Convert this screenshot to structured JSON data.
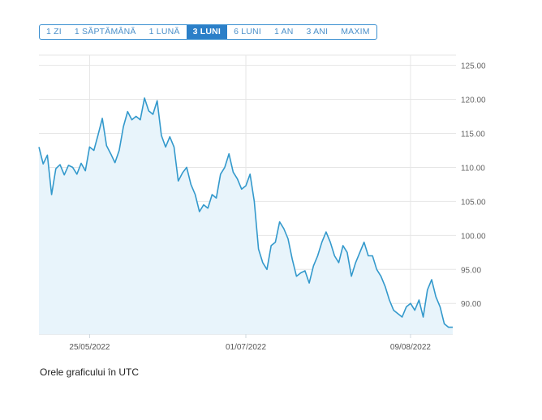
{
  "range_tabs": [
    {
      "label": "1 ZI"
    },
    {
      "label": "1 SĂPTĂMÂNĂ"
    },
    {
      "label": "1 LUNĂ"
    },
    {
      "label": "3 LUNI",
      "active": true
    },
    {
      "label": "6 LUNI"
    },
    {
      "label": "1 AN"
    },
    {
      "label": "3 ANI"
    },
    {
      "label": "MAXIM"
    }
  ],
  "footer_note": "Orele graficului în UTC",
  "colors": {
    "line": "#3399cc",
    "area": "#e8f4fb",
    "grid": "#e6e6e6",
    "tab_active": "#2b7fc8"
  },
  "chart_data": {
    "type": "area",
    "title": "",
    "xlabel": "",
    "ylabel": "",
    "ylim": [
      85.5,
      126.5
    ],
    "xlim": [
      "2022-05-13",
      "2022-08-19"
    ],
    "grid": true,
    "y_axis_position": "right",
    "y_ticks": [
      "90.00",
      "95.00",
      "100.00",
      "105.00",
      "110.00",
      "115.00",
      "120.00",
      "125.00"
    ],
    "x_ticks": [
      {
        "label": "25/05/2022",
        "date": "2022-05-25"
      },
      {
        "label": "01/07/2022",
        "date": "2022-07-01"
      },
      {
        "label": "09/08/2022",
        "date": "2022-08-09"
      }
    ],
    "series": [
      {
        "x": [
          "2022-05-13",
          "2022-05-14",
          "2022-05-15",
          "2022-05-16",
          "2022-05-17",
          "2022-05-18",
          "2022-05-19",
          "2022-05-20",
          "2022-05-21",
          "2022-05-22",
          "2022-05-23",
          "2022-05-24",
          "2022-05-25",
          "2022-05-26",
          "2022-05-27",
          "2022-05-28",
          "2022-05-29",
          "2022-05-30",
          "2022-05-31",
          "2022-06-01",
          "2022-06-02",
          "2022-06-03",
          "2022-06-04",
          "2022-06-05",
          "2022-06-06",
          "2022-06-07",
          "2022-06-08",
          "2022-06-09",
          "2022-06-10",
          "2022-06-11",
          "2022-06-12",
          "2022-06-13",
          "2022-06-14",
          "2022-06-15",
          "2022-06-16",
          "2022-06-17",
          "2022-06-18",
          "2022-06-19",
          "2022-06-20",
          "2022-06-21",
          "2022-06-22",
          "2022-06-23",
          "2022-06-24",
          "2022-06-25",
          "2022-06-26",
          "2022-06-27",
          "2022-06-28",
          "2022-06-29",
          "2022-06-30",
          "2022-07-01",
          "2022-07-02",
          "2022-07-03",
          "2022-07-04",
          "2022-07-05",
          "2022-07-06",
          "2022-07-07",
          "2022-07-08",
          "2022-07-09",
          "2022-07-10",
          "2022-07-11",
          "2022-07-12",
          "2022-07-13",
          "2022-07-14",
          "2022-07-15",
          "2022-07-16",
          "2022-07-17",
          "2022-07-18",
          "2022-07-19",
          "2022-07-20",
          "2022-07-21",
          "2022-07-22",
          "2022-07-23",
          "2022-07-24",
          "2022-07-25",
          "2022-07-26",
          "2022-07-27",
          "2022-07-28",
          "2022-07-29",
          "2022-07-30",
          "2022-07-31",
          "2022-08-01",
          "2022-08-02",
          "2022-08-03",
          "2022-08-04",
          "2022-08-05",
          "2022-08-06",
          "2022-08-07",
          "2022-08-08",
          "2022-08-09",
          "2022-08-10",
          "2022-08-11",
          "2022-08-12",
          "2022-08-13",
          "2022-08-14",
          "2022-08-15",
          "2022-08-16",
          "2022-08-17",
          "2022-08-18",
          "2022-08-19"
        ],
        "values": [
          113.0,
          110.5,
          111.8,
          106.0,
          109.8,
          110.4,
          108.9,
          110.3,
          110.0,
          109.0,
          110.6,
          109.5,
          113.0,
          112.5,
          114.8,
          117.2,
          113.2,
          112.0,
          110.7,
          112.5,
          116.0,
          118.2,
          117.0,
          117.5,
          117.0,
          120.2,
          118.3,
          117.8,
          119.8,
          114.7,
          113.0,
          114.5,
          113.0,
          108.0,
          109.2,
          110.0,
          107.5,
          106.0,
          103.5,
          104.5,
          104.0,
          106.0,
          105.5,
          109.0,
          110.0,
          112.0,
          109.3,
          108.3,
          106.8,
          107.3,
          109.0,
          105.0,
          98.0,
          96.0,
          95.0,
          98.5,
          99.0,
          102.0,
          101.0,
          99.5,
          96.5,
          94.0,
          94.5,
          94.8,
          93.0,
          95.5,
          97.0,
          99.0,
          100.5,
          99.0,
          97.0,
          96.0,
          98.5,
          97.5,
          94.0,
          96.0,
          97.5,
          99.0,
          97.0,
          97.0,
          95.0,
          94.0,
          92.5,
          90.5,
          89.0,
          88.5,
          88.0,
          89.5,
          90.0,
          89.0,
          90.5,
          88.0,
          92.0,
          93.5,
          91.0,
          89.5,
          87.0,
          86.5,
          86.5
        ]
      }
    ]
  }
}
